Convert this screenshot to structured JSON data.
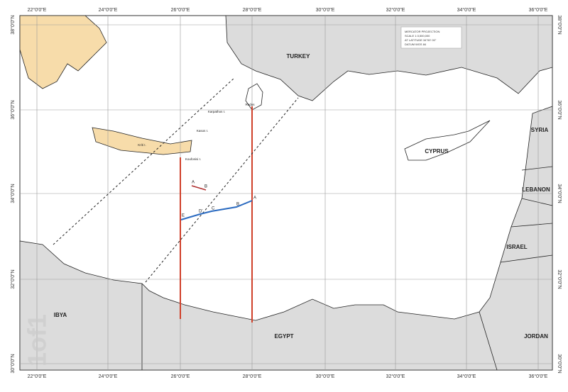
{
  "lon_labels": [
    "22°0'0\"E",
    "24°0'0\"E",
    "26°0'0\"E",
    "28°0'0\"E",
    "30°0'0\"E",
    "32°0'0\"E",
    "34°0'0\"E",
    "36°0'0\"E"
  ],
  "lat_labels": [
    "38°0'0\"N",
    "36°0'0\"N",
    "34°0'0\"N",
    "32°0'0\"N",
    "30°0'0\"N"
  ],
  "countries": {
    "turkey": "TURKEY",
    "cyprus": "CYPRUS",
    "syria": "SYRIA",
    "lebanon": "LEBANON",
    "israel": "ISRAEL",
    "jordan": "JORDAN",
    "egypt": "EGYPT",
    "libya": "IBYA"
  },
  "islands": {
    "karpathos": "Karpathos I.",
    "kasos": "Kasos I.",
    "kriti": "Kriti I.",
    "koufonisi": "Koufonisi I.",
    "rodos": "Rodos"
  },
  "info_box": [
    "MERCATOR PROJECTION",
    "SCALE 1:3,500,000",
    "AT LATITUDE 34°00' 00\"",
    "DATUM WGS 84"
  ],
  "points": {
    "blue": [
      "A",
      "B",
      "C",
      "D'",
      "E"
    ],
    "red": [
      "A",
      "B"
    ]
  },
  "watermark": "1of1"
}
